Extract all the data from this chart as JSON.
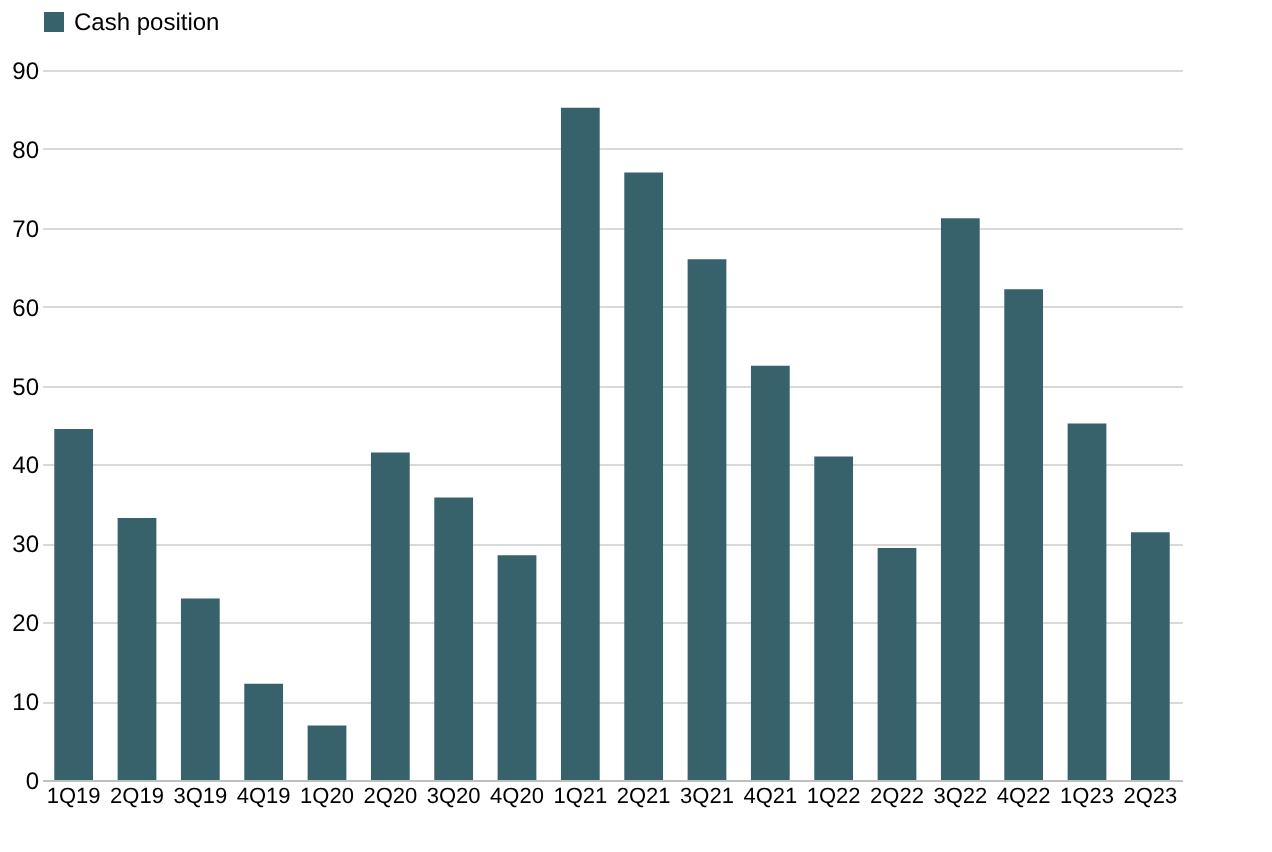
{
  "chart_data": {
    "type": "bar",
    "categories": [
      "1Q19",
      "2Q19",
      "3Q19",
      "4Q19",
      "1Q20",
      "2Q20",
      "3Q20",
      "4Q20",
      "1Q21",
      "2Q21",
      "3Q21",
      "4Q21",
      "1Q22",
      "2Q22",
      "3Q22",
      "4Q22",
      "1Q23",
      "2Q23"
    ],
    "series": [
      {
        "name": "Cash position",
        "color": "#37626b",
        "values": [
          44.5,
          33.2,
          23,
          12.2,
          6.9,
          41.5,
          35.8,
          28.5,
          85.2,
          77,
          66,
          52.5,
          41,
          29.4,
          71.2,
          62.2,
          45.2,
          31.4
        ]
      }
    ],
    "ylim": [
      0,
      90
    ],
    "yticks": [
      0,
      10,
      20,
      30,
      40,
      50,
      60,
      70,
      80,
      90
    ],
    "grid": "y",
    "legend": "top"
  }
}
